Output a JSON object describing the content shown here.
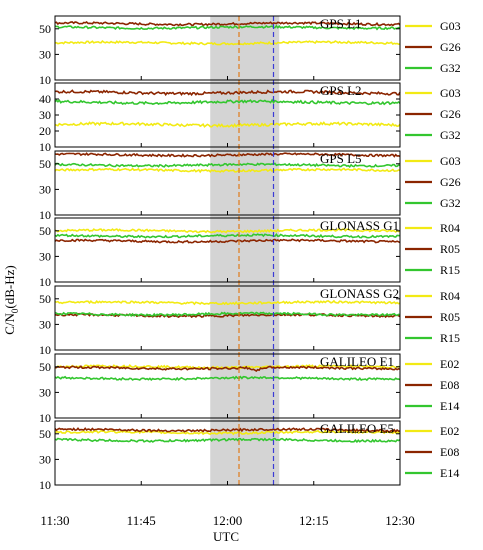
{
  "chart_data": {
    "type": "line",
    "ylabel": "C/N₀(dB-Hz)",
    "ylabel_parts": {
      "base": "C/N",
      "sub": "0",
      "rest": "(dB-Hz)"
    },
    "xlabel": "UTC",
    "x_ticks": [
      "11:30",
      "11:45",
      "12:00",
      "12:15",
      "12:30"
    ],
    "x_range": [
      "11:30",
      "12:30"
    ],
    "shaded_interval": [
      "11:57",
      "12:09"
    ],
    "vertical_markers": [
      {
        "time": "12:02",
        "color": "#e07b1a",
        "style": "dashed"
      },
      {
        "time": "12:08",
        "color": "#3b3bd6",
        "style": "dashed"
      }
    ],
    "colors": {
      "yellow": "#f2ea14",
      "darkred": "#8b2500",
      "green": "#33c62f",
      "shade": "#d4d4d4"
    },
    "panels": [
      {
        "title": "GPS L1",
        "ylim": [
          10,
          60
        ],
        "yticks": [
          "50",
          "30",
          "10"
        ],
        "series": [
          {
            "name": "G03",
            "color": "#f2ea14",
            "level": 39,
            "dips": []
          },
          {
            "name": "G26",
            "color": "#8b2500",
            "level": 54,
            "dips": []
          },
          {
            "name": "G32",
            "color": "#33c62f",
            "level": 51,
            "dips": []
          }
        ]
      },
      {
        "title": "GPS L2",
        "ylim": [
          10,
          50
        ],
        "yticks": [
          "40",
          "30",
          "20",
          "10"
        ],
        "series": [
          {
            "name": "G03",
            "color": "#f2ea14",
            "level": 24,
            "dips": [
              {
                "at": 62.5,
                "depth": 6
              }
            ]
          },
          {
            "name": "G26",
            "color": "#8b2500",
            "level": 44,
            "dips": [
              {
                "at": 62.5,
                "depth": 6
              }
            ]
          },
          {
            "name": "G32",
            "color": "#33c62f",
            "level": 38,
            "dips": [
              {
                "at": 62.5,
                "depth": 4
              }
            ]
          }
        ]
      },
      {
        "title": "GPS L5",
        "ylim": [
          10,
          60
        ],
        "yticks": [
          "50",
          "30",
          "10"
        ],
        "series": [
          {
            "name": "G03",
            "color": "#f2ea14",
            "level": 45,
            "dips": [
              {
                "at": 62.5,
                "depth": 6
              }
            ]
          },
          {
            "name": "G26",
            "color": "#8b2500",
            "level": 57,
            "dips": [
              {
                "at": 62.5,
                "depth": 8
              },
              {
                "at": 68,
                "depth": 5
              }
            ]
          },
          {
            "name": "G32",
            "color": "#33c62f",
            "level": 49,
            "dips": [
              {
                "at": 62.5,
                "depth": 5
              }
            ]
          }
        ]
      },
      {
        "title": "GLONASS G1",
        "ylim": [
          10,
          60
        ],
        "yticks": [
          "50",
          "30",
          "10"
        ],
        "series": [
          {
            "name": "R04",
            "color": "#f2ea14",
            "level": 50,
            "dips": []
          },
          {
            "name": "R05",
            "color": "#8b2500",
            "level": 42,
            "dips": []
          },
          {
            "name": "R15",
            "color": "#33c62f",
            "level": 46,
            "dips": []
          }
        ]
      },
      {
        "title": "GLONASS G2",
        "ylim": [
          10,
          60
        ],
        "yticks": [
          "50",
          "30",
          "10"
        ],
        "series": [
          {
            "name": "R04",
            "color": "#f2ea14",
            "level": 47,
            "dips": []
          },
          {
            "name": "R05",
            "color": "#8b2500",
            "level": 37,
            "dips": [
              {
                "at": 62.5,
                "depth": 6
              }
            ]
          },
          {
            "name": "R15",
            "color": "#33c62f",
            "level": 38,
            "dips": [
              {
                "at": 62.5,
                "depth": 6
              }
            ]
          }
        ]
      },
      {
        "title": "GALILEO E1",
        "ylim": [
          10,
          60
        ],
        "yticks": [
          "50",
          "30",
          "10"
        ],
        "series": [
          {
            "name": "E02",
            "color": "#f2ea14",
            "level": 50,
            "dips": []
          },
          {
            "name": "E08",
            "color": "#8b2500",
            "level": 49,
            "dips": [
              {
                "at": 35,
                "depth": 3
              }
            ]
          },
          {
            "name": "E14",
            "color": "#33c62f",
            "level": 41,
            "dips": []
          }
        ]
      },
      {
        "title": "GALILEO E5",
        "ylim": [
          10,
          60
        ],
        "yticks": [
          "50",
          "30",
          "10"
        ],
        "series": [
          {
            "name": "E02",
            "color": "#f2ea14",
            "level": 51,
            "dips": [
              {
                "at": 62.5,
                "depth": 5
              }
            ]
          },
          {
            "name": "E08",
            "color": "#8b2500",
            "level": 53,
            "dips": [
              {
                "at": 62.5,
                "depth": 6
              },
              {
                "at": 68,
                "depth": 4
              }
            ]
          },
          {
            "name": "E14",
            "color": "#33c62f",
            "level": 45,
            "dips": [
              {
                "at": 62.5,
                "depth": 5
              },
              {
                "at": 68,
                "depth": 4
              }
            ]
          }
        ]
      }
    ]
  }
}
